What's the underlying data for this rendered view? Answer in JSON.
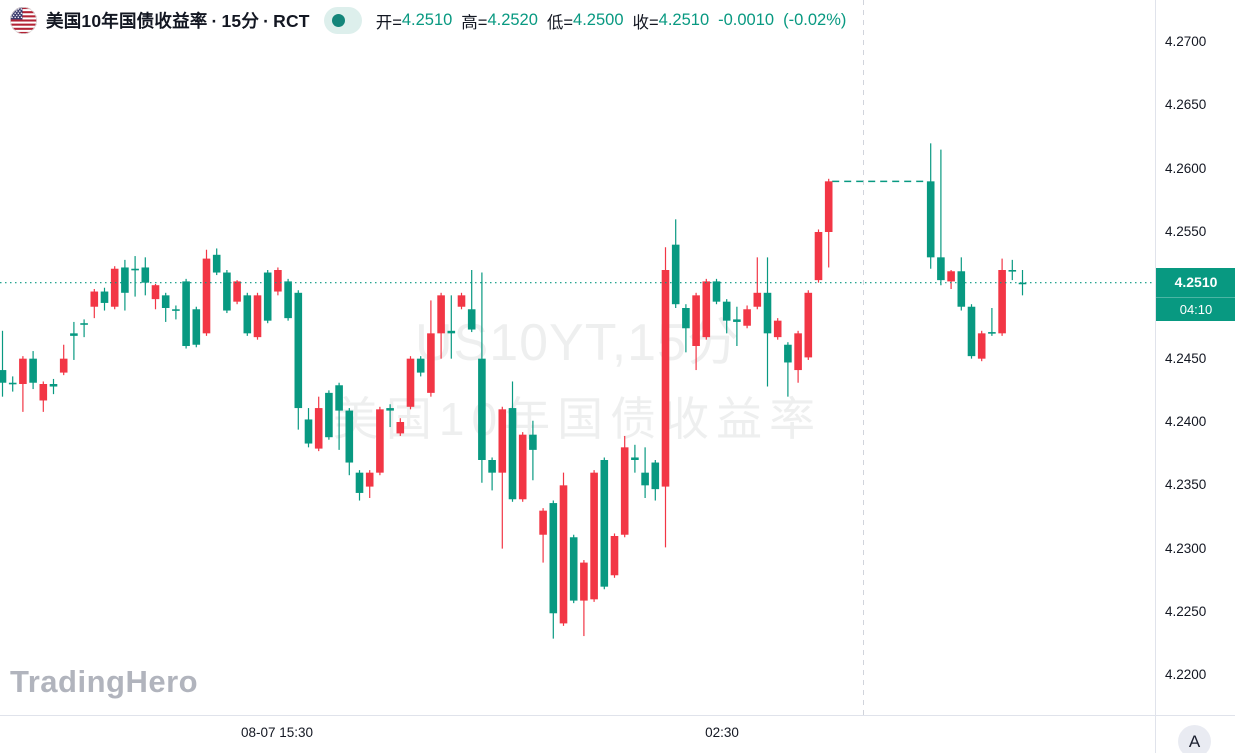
{
  "header": {
    "flag_icon": "us-flag-icon",
    "symbol_name": "美国10年国债收益率",
    "separator": "·",
    "interval": "15分",
    "exchange": "RCT",
    "status_icon": "live-dot-icon",
    "ohlc": {
      "open_label": "开=",
      "open": "4.2510",
      "high_label": "高=",
      "high": "4.2520",
      "low_label": "低=",
      "low": "4.2500",
      "close_label": "收=",
      "close": "4.2510",
      "change": "-0.0010",
      "change_pct": "(-0.02%)"
    }
  },
  "watermark": {
    "line1": "US10YT,15分",
    "line2": "美国10年国债收益率"
  },
  "logo_text": "TradingHero",
  "price_axis": {
    "labels": [
      "4.2700",
      "4.2650",
      "4.2600",
      "4.2550",
      "4.2450",
      "4.2400",
      "4.2350",
      "4.2300",
      "4.2250",
      "4.2200"
    ],
    "last_price": "4.2510",
    "countdown": "04:10"
  },
  "time_axis": {
    "labels": [
      {
        "text": "08-07 15:30",
        "x": 277
      },
      {
        "text": "02:30",
        "x": 722
      }
    ]
  },
  "corner_button_label": "A",
  "colors": {
    "up": "#f23645",
    "down": "#089981",
    "accent": "#089981",
    "session_line": "#d1d4dc",
    "axis_border": "#e0e3eb",
    "axis_text": "#131722",
    "badge_bg": "#089981",
    "badge_text": "#ffffff"
  },
  "chart_data": {
    "type": "candlestick",
    "title": "美国10年国债收益率 15分 RCT",
    "ylim": [
      4.2165,
      4.2725
    ],
    "y_ticks": [
      4.27,
      4.265,
      4.26,
      4.255,
      4.245,
      4.24,
      4.235,
      4.23,
      4.225,
      4.22
    ],
    "grid": false,
    "up_means": "red rising candles (Chinese convention)",
    "session_break_x": 863,
    "levels": {
      "last_price": 4.251,
      "gap_line_price": 4.259,
      "gap_line_slots": [
        81,
        91
      ]
    },
    "candles": [
      [
        0,
        4.2441,
        4.2472,
        4.242,
        4.2431
      ],
      [
        1,
        4.2431,
        4.2436,
        4.2424,
        4.243
      ],
      [
        2,
        4.243,
        4.2452,
        4.2408,
        4.245
      ],
      [
        3,
        4.245,
        4.2456,
        4.2426,
        4.2431
      ],
      [
        4,
        4.2417,
        4.2432,
        4.2408,
        4.243
      ],
      [
        5,
        4.243,
        4.2434,
        4.2422,
        4.2428
      ],
      [
        6,
        4.2439,
        4.2461,
        4.2437,
        4.245
      ],
      [
        7,
        4.247,
        4.2479,
        4.2449,
        4.2468
      ],
      [
        8,
        4.2478,
        4.2481,
        4.2467,
        4.2477
      ],
      [
        9,
        4.2491,
        4.2505,
        4.2482,
        4.2503
      ],
      [
        10,
        4.2503,
        4.2506,
        4.2488,
        4.2494
      ],
      [
        11,
        4.2491,
        4.2523,
        4.2489,
        4.2521
      ],
      [
        12,
        4.2522,
        4.2528,
        4.2488,
        4.2502
      ],
      [
        13,
        4.2521,
        4.2531,
        4.2499,
        4.252
      ],
      [
        14,
        4.2522,
        4.253,
        4.25,
        4.251
      ],
      [
        15,
        4.2497,
        4.2509,
        4.2489,
        4.2508
      ],
      [
        16,
        4.25,
        4.2502,
        4.2479,
        4.249
      ],
      [
        17,
        4.2489,
        4.2492,
        4.2481,
        4.2488
      ],
      [
        18,
        4.2511,
        4.2513,
        4.2458,
        4.246
      ],
      [
        19,
        4.2489,
        4.2491,
        4.2459,
        4.2461
      ],
      [
        20,
        4.247,
        4.2536,
        4.2468,
        4.2529
      ],
      [
        21,
        4.2532,
        4.2537,
        4.2516,
        4.2518
      ],
      [
        22,
        4.2518,
        4.252,
        4.2486,
        4.2488
      ],
      [
        23,
        4.2495,
        4.2512,
        4.2493,
        4.2511
      ],
      [
        24,
        4.25,
        4.2502,
        4.2468,
        4.247
      ],
      [
        25,
        4.2467,
        4.2502,
        4.2465,
        4.25
      ],
      [
        26,
        4.2518,
        4.252,
        4.2478,
        4.248
      ],
      [
        27,
        4.2503,
        4.2522,
        4.25,
        4.252
      ],
      [
        28,
        4.2511,
        4.2513,
        4.248,
        4.2482
      ],
      [
        29,
        4.2502,
        4.2504,
        4.2394,
        4.2411
      ],
      [
        30,
        4.2402,
        4.2411,
        4.238,
        4.2383
      ],
      [
        31,
        4.2379,
        4.242,
        4.2377,
        4.2411
      ],
      [
        32,
        4.2423,
        4.2425,
        4.2386,
        4.2388
      ],
      [
        33,
        4.2429,
        4.2431,
        4.2378,
        4.2409
      ],
      [
        34,
        4.2409,
        4.2411,
        4.2358,
        4.2368
      ],
      [
        35,
        4.236,
        4.2362,
        4.2338,
        4.2344
      ],
      [
        36,
        4.2349,
        4.2362,
        4.234,
        4.236
      ],
      [
        37,
        4.236,
        4.2412,
        4.2358,
        4.241
      ],
      [
        38,
        4.2411,
        4.2414,
        4.2396,
        4.2409
      ],
      [
        39,
        4.2391,
        4.2403,
        4.2389,
        4.24
      ],
      [
        40,
        4.2412,
        4.2452,
        4.241,
        4.245
      ],
      [
        41,
        4.245,
        4.2452,
        4.2436,
        4.2439
      ],
      [
        42,
        4.2423,
        4.2496,
        4.242,
        4.247
      ],
      [
        43,
        4.247,
        4.2502,
        4.245,
        4.25
      ],
      [
        44,
        4.2472,
        4.25,
        4.245,
        4.247
      ],
      [
        45,
        4.2491,
        4.2502,
        4.2489,
        4.25
      ],
      [
        46,
        4.2489,
        4.252,
        4.2471,
        4.2473
      ],
      [
        47,
        4.245,
        4.2518,
        4.2352,
        4.237
      ],
      [
        48,
        4.237,
        4.2372,
        4.2346,
        4.236
      ],
      [
        49,
        4.236,
        4.2412,
        4.23,
        4.241
      ],
      [
        50,
        4.2411,
        4.2432,
        4.2337,
        4.2339
      ],
      [
        51,
        4.2339,
        4.2392,
        4.2337,
        4.239
      ],
      [
        52,
        4.239,
        4.2401,
        4.2354,
        4.2378
      ],
      [
        53,
        4.2311,
        4.2332,
        4.2289,
        4.233
      ],
      [
        54,
        4.2336,
        4.2338,
        4.2229,
        4.2249
      ],
      [
        55,
        4.2241,
        4.236,
        4.2239,
        4.235
      ],
      [
        56,
        4.2309,
        4.2311,
        4.2257,
        4.2259
      ],
      [
        57,
        4.2259,
        4.2291,
        4.2231,
        4.2289
      ],
      [
        58,
        4.226,
        4.2362,
        4.2258,
        4.236
      ],
      [
        59,
        4.237,
        4.2372,
        4.2268,
        4.227
      ],
      [
        60,
        4.2279,
        4.2312,
        4.2277,
        4.231
      ],
      [
        61,
        4.2311,
        4.2389,
        4.2309,
        4.238
      ],
      [
        62,
        4.2372,
        4.2382,
        4.236,
        4.237
      ],
      [
        63,
        4.236,
        4.238,
        4.234,
        4.235
      ],
      [
        64,
        4.2368,
        4.237,
        4.2338,
        4.2347
      ],
      [
        65,
        4.2349,
        4.2538,
        4.2301,
        4.252
      ],
      [
        66,
        4.254,
        4.256,
        4.249,
        4.2493
      ],
      [
        67,
        4.249,
        4.2493,
        4.2455,
        4.2474
      ],
      [
        68,
        4.246,
        4.2502,
        4.2441,
        4.25
      ],
      [
        69,
        4.2467,
        4.2513,
        4.2465,
        4.2511
      ],
      [
        70,
        4.2511,
        4.2513,
        4.2493,
        4.2495
      ],
      [
        71,
        4.2495,
        4.2497,
        4.247,
        4.248
      ],
      [
        72,
        4.2481,
        4.2491,
        4.246,
        4.2479
      ],
      [
        73,
        4.2476,
        4.2492,
        4.2474,
        4.2489
      ],
      [
        74,
        4.2491,
        4.253,
        4.2489,
        4.2502
      ],
      [
        75,
        4.2502,
        4.253,
        4.2428,
        4.247
      ],
      [
        76,
        4.2467,
        4.2482,
        4.2465,
        4.248
      ],
      [
        77,
        4.2461,
        4.2463,
        4.242,
        4.2447
      ],
      [
        78,
        4.2441,
        4.2472,
        4.2431,
        4.247
      ],
      [
        79,
        4.2451,
        4.2504,
        4.2449,
        4.2502
      ],
      [
        80,
        4.2512,
        4.2552,
        4.251,
        4.255
      ],
      [
        81,
        4.255,
        4.2592,
        4.2522,
        4.259
      ],
      [
        91,
        4.259,
        4.262,
        4.2521,
        4.253
      ],
      [
        92,
        4.253,
        4.2615,
        4.2508,
        4.2512
      ],
      [
        93,
        4.2511,
        4.252,
        4.2505,
        4.2519
      ],
      [
        94,
        4.2519,
        4.253,
        4.2488,
        4.2491
      ],
      [
        95,
        4.2491,
        4.2493,
        4.245,
        4.2452
      ],
      [
        96,
        4.245,
        4.2472,
        4.2448,
        4.247
      ],
      [
        97,
        4.2471,
        4.249,
        4.2468,
        4.247
      ],
      [
        98,
        4.247,
        4.2529,
        4.2468,
        4.252
      ],
      [
        99,
        4.252,
        4.2528,
        4.2512,
        4.2519
      ],
      [
        100,
        4.251,
        4.252,
        4.25,
        4.251
      ]
    ]
  }
}
